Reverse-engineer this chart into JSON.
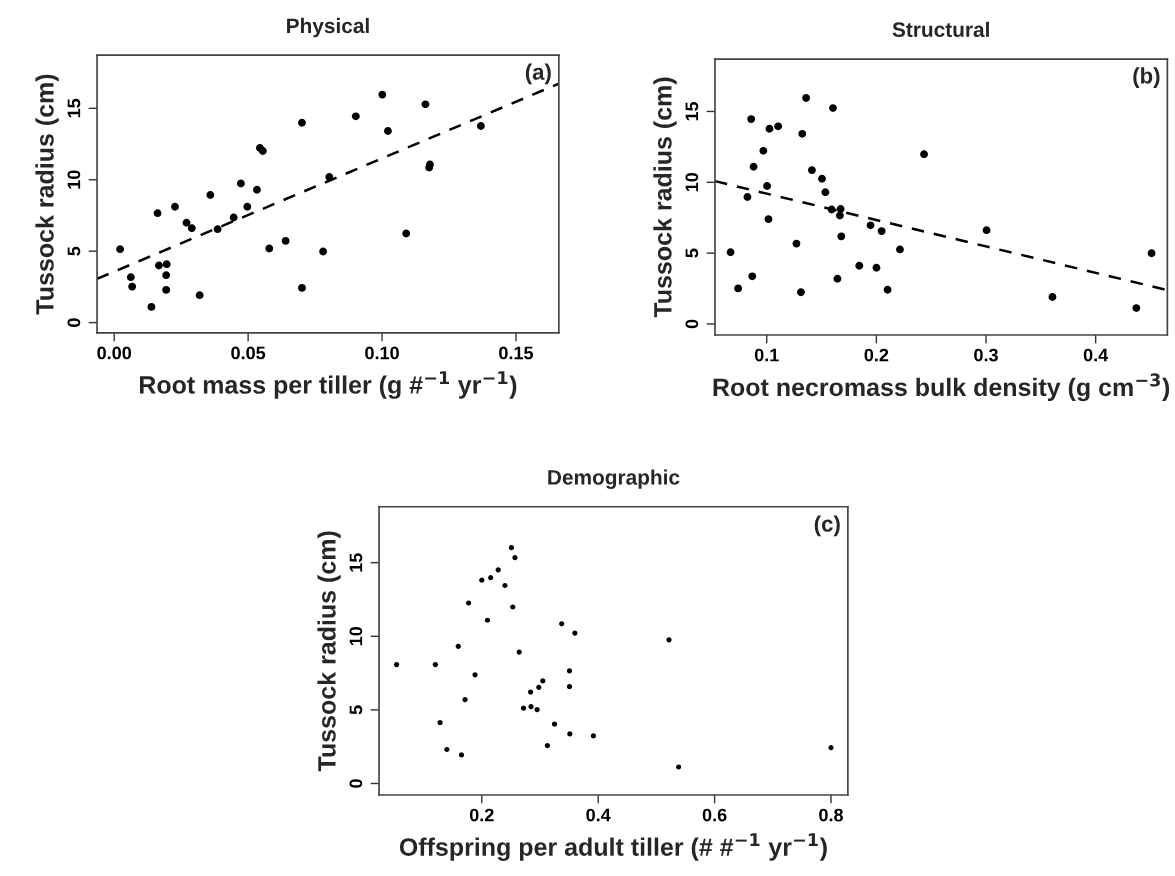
{
  "chart_data": [
    {
      "type": "scatter",
      "title": "Physical",
      "xlabel": "Root mass per tiller (g #$^{−1}$ yr$^{−1}$)",
      "ylabel": "Tussock radius (cm)",
      "annotations": [
        "(a)"
      ],
      "xlim": [
        -0.0064,
        0.166
      ],
      "ylim": [
        -0.72,
        18.72
      ],
      "xticks": [
        {
          "value": 0,
          "label": "0.00"
        },
        0.05,
        {
          "value": 0.1,
          "label": "0.10"
        },
        0.15
      ],
      "yticks": [
        0,
        5,
        10,
        15
      ],
      "grid": false,
      "legend": false,
      "series": [
        {
          "marker": "circle",
          "color": "#000000",
          "x": [
            0.0022,
            0.0062,
            0.0067,
            0.0139,
            0.0162,
            0.0167,
            0.0196,
            0.0194,
            0.0194,
            0.0227,
            0.027,
            0.029,
            0.0319,
            0.0359,
            0.0386,
            0.0446,
            0.0473,
            0.0497,
            0.0533,
            0.0544,
            0.0555,
            0.0579,
            0.064,
            0.0701,
            0.0701,
            0.078,
            0.0803,
            0.0902,
            0.1001,
            0.1022,
            0.109,
            0.1162,
            0.1179,
            0.1176,
            0.1369
          ],
          "values": [
            5.14,
            3.18,
            2.52,
            1.1,
            7.66,
            4.0,
            4.09,
            3.32,
            2.29,
            8.11,
            6.99,
            6.61,
            1.92,
            8.93,
            6.54,
            7.36,
            9.74,
            8.11,
            9.3,
            12.22,
            12.01,
            5.19,
            5.72,
            13.99,
            2.43,
            4.98,
            10.19,
            14.44,
            15.96,
            13.41,
            6.24,
            15.28,
            11.07,
            10.86,
            13.76
          ]
        },
        {
          "type": "line",
          "color": "#000000",
          "line_style": "dashed",
          "x": [
            -0.0064,
            0.166
          ],
          "values": [
            3.06,
            16.73
          ]
        }
      ]
    },
    {
      "type": "scatter",
      "title": "Structural",
      "xlabel": "Root necromass bulk density (g cm$^{−3}$)",
      "ylabel": "Tussock radius (cm)",
      "annotations": [
        "(b)"
      ],
      "xlim": [
        0.0528,
        0.4654
      ],
      "ylim": [
        -0.78,
        18.7
      ],
      "xticks": [
        0.1,
        0.2,
        0.3,
        0.4
      ],
      "yticks": [
        0,
        5,
        10,
        15
      ],
      "grid": false,
      "legend": false,
      "series": [
        {
          "marker": "circle",
          "color": "#000000",
          "x": [
            0.067,
            0.0739,
            0.0824,
            0.0858,
            0.0868,
            0.088,
            0.0969,
            0.1003,
            0.1016,
            0.1025,
            0.1104,
            0.1312,
            0.1324,
            0.1271,
            0.1359,
            0.1412,
            0.1504,
            0.1535,
            0.1592,
            0.1604,
            0.1674,
            0.1667,
            0.168,
            0.1645,
            0.1844,
            0.1947,
            0.2001,
            0.2048,
            0.2102,
            0.2215,
            0.2435,
            0.3005,
            0.3606,
            0.4371,
            0.451
          ],
          "values": [
            5.06,
            2.51,
            8.96,
            14.46,
            3.36,
            11.1,
            12.22,
            9.74,
            7.4,
            13.78,
            13.95,
            2.24,
            13.42,
            5.67,
            15.95,
            10.86,
            10.25,
            9.3,
            8.08,
            15.24,
            8.11,
            7.65,
            6.18,
            3.19,
            4.11,
            6.96,
            3.97,
            6.55,
            2.41,
            5.26,
            11.98,
            6.62,
            1.9,
            1.12,
            4.99
          ]
        },
        {
          "type": "line",
          "color": "#000000",
          "line_style": "dashed",
          "x": [
            0.0528,
            0.4654
          ],
          "values": [
            10.08,
            2.39
          ]
        }
      ]
    },
    {
      "type": "scatter",
      "title": "Demographic",
      "xlabel": "Offspring per adult tiller (# #$^{−1}$ yr$^{−1}$)",
      "ylabel": "Tussock radius (cm)",
      "annotations": [
        "(c)"
      ],
      "xlim": [
        0.0235,
        0.829
      ],
      "ylim": [
        -0.78,
        18.8
      ],
      "xticks": [
        0.2,
        0.4,
        0.6,
        0.8
      ],
      "yticks": [
        0,
        5,
        10,
        15
      ],
      "grid": false,
      "legend": false,
      "series": [
        {
          "marker": "circle",
          "color": "#000000",
          "x": [
            0.0536,
            0.1203,
            0.1283,
            0.14,
            0.1596,
            0.1651,
            0.1712,
            0.1773,
            0.1884,
            0.2,
            0.2098,
            0.2153,
            0.2282,
            0.2398,
            0.2509,
            0.2533,
            0.257,
            0.2643,
            0.2717,
            0.2839,
            0.2846,
            0.295,
            0.298,
            0.3048,
            0.3127,
            0.325,
            0.3373,
            0.3507,
            0.3507,
            0.3513,
            0.3599,
            0.3918,
            0.5217,
            0.5382,
            0.8
          ],
          "values": [
            8.08,
            8.08,
            4.13,
            2.31,
            9.32,
            1.94,
            5.7,
            12.26,
            7.38,
            13.81,
            11.09,
            13.98,
            14.51,
            13.45,
            16.02,
            11.99,
            15.34,
            8.93,
            5.12,
            6.21,
            5.22,
            5.02,
            6.53,
            6.97,
            2.57,
            4.03,
            10.85,
            7.65,
            6.58,
            3.37,
            10.22,
            3.23,
            9.76,
            1.12,
            2.43
          ]
        }
      ]
    }
  ]
}
